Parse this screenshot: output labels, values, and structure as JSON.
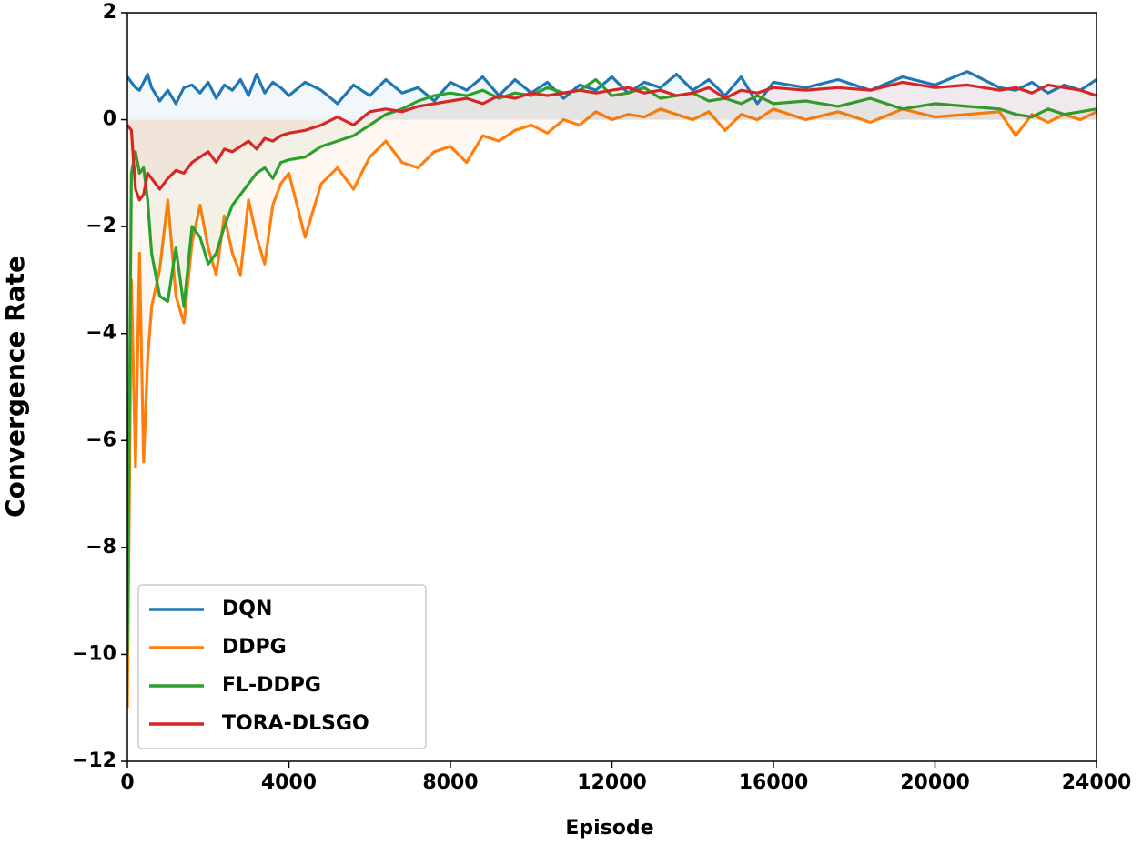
{
  "chart_data": {
    "type": "line",
    "xlabel": "Episode",
    "ylabel": "Convergence Rate",
    "x": [
      0,
      100,
      200,
      300,
      400,
      500,
      600,
      800,
      1000,
      1200,
      1400,
      1600,
      1800,
      2000,
      2200,
      2400,
      2600,
      2800,
      3000,
      3200,
      3400,
      3600,
      3800,
      4000,
      4400,
      4800,
      5200,
      5600,
      6000,
      6400,
      6800,
      7200,
      7600,
      8000,
      8400,
      8800,
      9200,
      9600,
      10000,
      10400,
      10800,
      11200,
      11600,
      12000,
      12400,
      12800,
      13200,
      13600,
      14000,
      14400,
      14800,
      15200,
      15600,
      16000,
      16800,
      17600,
      18400,
      19200,
      20000,
      20800,
      21600,
      22000,
      22400,
      22800,
      23200,
      23600,
      24000
    ],
    "series": [
      {
        "name": "DQN",
        "color": "#1f77b4",
        "values": [
          0.8,
          0.7,
          0.6,
          0.55,
          0.7,
          0.85,
          0.6,
          0.35,
          0.55,
          0.3,
          0.6,
          0.65,
          0.5,
          0.7,
          0.4,
          0.65,
          0.55,
          0.75,
          0.45,
          0.85,
          0.5,
          0.7,
          0.6,
          0.45,
          0.7,
          0.55,
          0.3,
          0.65,
          0.45,
          0.75,
          0.5,
          0.6,
          0.35,
          0.7,
          0.55,
          0.8,
          0.45,
          0.75,
          0.5,
          0.7,
          0.4,
          0.65,
          0.55,
          0.8,
          0.5,
          0.7,
          0.6,
          0.85,
          0.55,
          0.75,
          0.45,
          0.8,
          0.3,
          0.7,
          0.6,
          0.75,
          0.55,
          0.8,
          0.65,
          0.9,
          0.6,
          0.55,
          0.7,
          0.5,
          0.65,
          0.55,
          0.75
        ]
      },
      {
        "name": "DDPG",
        "color": "#ff7f0e",
        "values": [
          -11,
          -3,
          -6.5,
          -2.5,
          -6.4,
          -4.5,
          -3.5,
          -2.8,
          -1.5,
          -3.3,
          -3.8,
          -2.3,
          -1.6,
          -2.4,
          -2.9,
          -1.8,
          -2.5,
          -2.9,
          -1.5,
          -2.2,
          -2.7,
          -1.6,
          -1.2,
          -1.0,
          -2.2,
          -1.2,
          -0.9,
          -1.3,
          -0.7,
          -0.4,
          -0.8,
          -0.9,
          -0.6,
          -0.5,
          -0.8,
          -0.3,
          -0.4,
          -0.2,
          -0.1,
          -0.25,
          0.0,
          -0.1,
          0.15,
          0.0,
          0.1,
          0.05,
          0.2,
          0.1,
          0.0,
          0.15,
          -0.2,
          0.1,
          0.0,
          0.2,
          0.0,
          0.15,
          -0.05,
          0.2,
          0.05,
          0.1,
          0.15,
          -0.3,
          0.1,
          -0.05,
          0.1,
          0.0,
          0.15
        ]
      },
      {
        "name": "FL-DDPG",
        "color": "#2ca02c",
        "values": [
          -10,
          -1,
          -0.6,
          -1.0,
          -0.9,
          -1.5,
          -2.5,
          -3.3,
          -3.4,
          -2.4,
          -3.5,
          -2.0,
          -2.2,
          -2.7,
          -2.5,
          -2.0,
          -1.6,
          -1.4,
          -1.2,
          -1.0,
          -0.9,
          -1.1,
          -0.8,
          -0.75,
          -0.7,
          -0.5,
          -0.4,
          -0.3,
          -0.1,
          0.1,
          0.2,
          0.35,
          0.45,
          0.5,
          0.45,
          0.55,
          0.4,
          0.5,
          0.45,
          0.6,
          0.5,
          0.55,
          0.75,
          0.45,
          0.5,
          0.6,
          0.4,
          0.45,
          0.5,
          0.35,
          0.4,
          0.3,
          0.45,
          0.3,
          0.35,
          0.25,
          0.4,
          0.2,
          0.3,
          0.25,
          0.2,
          0.1,
          0.05,
          0.2,
          0.1,
          0.15,
          0.2
        ]
      },
      {
        "name": "TORA-DLSGO",
        "color": "#d62728",
        "values": [
          -0.1,
          -0.2,
          -1.3,
          -1.5,
          -1.4,
          -1.0,
          -1.1,
          -1.3,
          -1.1,
          -0.95,
          -1.0,
          -0.8,
          -0.7,
          -0.6,
          -0.8,
          -0.55,
          -0.6,
          -0.5,
          -0.4,
          -0.55,
          -0.35,
          -0.4,
          -0.3,
          -0.25,
          -0.2,
          -0.1,
          0.05,
          -0.1,
          0.15,
          0.2,
          0.15,
          0.25,
          0.3,
          0.35,
          0.4,
          0.3,
          0.45,
          0.4,
          0.5,
          0.45,
          0.5,
          0.55,
          0.5,
          0.55,
          0.6,
          0.5,
          0.55,
          0.45,
          0.5,
          0.6,
          0.4,
          0.55,
          0.5,
          0.6,
          0.55,
          0.6,
          0.55,
          0.7,
          0.6,
          0.65,
          0.55,
          0.6,
          0.5,
          0.65,
          0.6,
          0.55,
          0.45
        ]
      }
    ],
    "xlim": [
      0,
      24000
    ],
    "xticks": [
      0,
      4000,
      8000,
      12000,
      16000,
      20000,
      24000
    ],
    "ylim": [
      -12,
      2
    ],
    "yticks": [
      {
        "value": -12,
        "label": "−12"
      },
      {
        "value": -10,
        "label": "−10"
      },
      {
        "value": -8,
        "label": "−8"
      },
      {
        "value": -6,
        "label": "−6"
      },
      {
        "value": -4,
        "label": "−4"
      },
      {
        "value": -2,
        "label": "−2"
      },
      0,
      2
    ],
    "fill_to_zero": true,
    "legend": "lower left"
  }
}
